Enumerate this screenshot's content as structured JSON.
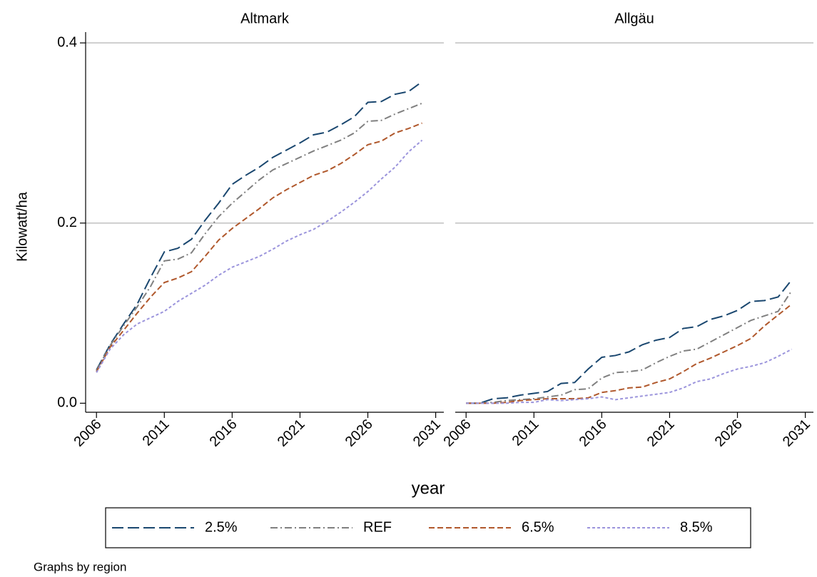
{
  "chart_data": [
    {
      "type": "line",
      "title": "Altmark",
      "y_label": "Kilowatt/ha",
      "x_label": "year",
      "note": "Graphs by region",
      "x": [
        2006,
        2007,
        2008,
        2009,
        2010,
        2011,
        2012,
        2013,
        2014,
        2015,
        2016,
        2017,
        2018,
        2019,
        2020,
        2021,
        2022,
        2023,
        2024,
        2025,
        2026,
        2027,
        2028,
        2029,
        2030
      ],
      "xlim": [
        2005.2,
        2031.6
      ],
      "xticks": [
        2006,
        2011,
        2016,
        2021,
        2026,
        2031
      ],
      "ylim": [
        -0.01,
        0.412
      ],
      "yticks": [
        {
          "value": 0,
          "label": "0.0"
        },
        0.2,
        0.4
      ],
      "grid": true,
      "series": [
        {
          "name": "2.5%",
          "color": "#1a476f",
          "dash": "16 6",
          "values": [
            0.037,
            0.065,
            0.088,
            0.11,
            0.14,
            0.168,
            0.172,
            0.182,
            0.203,
            0.222,
            0.243,
            0.253,
            0.262,
            0.273,
            0.281,
            0.289,
            0.298,
            0.301,
            0.309,
            0.318,
            0.334,
            0.335,
            0.343,
            0.346,
            0.357
          ]
        },
        {
          "name": "REF",
          "color": "#808080",
          "dash": "10 4 2 4",
          "values": [
            0.036,
            0.064,
            0.086,
            0.107,
            0.13,
            0.158,
            0.16,
            0.167,
            0.188,
            0.207,
            0.222,
            0.235,
            0.248,
            0.259,
            0.266,
            0.273,
            0.28,
            0.286,
            0.292,
            0.3,
            0.313,
            0.314,
            0.321,
            0.327,
            0.333
          ]
        },
        {
          "name": "6.5%",
          "color": "#b0582c",
          "dash": "8 4",
          "values": [
            0.035,
            0.062,
            0.081,
            0.1,
            0.118,
            0.134,
            0.139,
            0.146,
            0.163,
            0.181,
            0.194,
            0.205,
            0.216,
            0.228,
            0.237,
            0.245,
            0.253,
            0.258,
            0.266,
            0.276,
            0.287,
            0.291,
            0.3,
            0.305,
            0.311
          ]
        },
        {
          "name": "8.5%",
          "color": "#9b94dc",
          "dash": "4 3",
          "values": [
            0.034,
            0.06,
            0.076,
            0.088,
            0.095,
            0.102,
            0.113,
            0.122,
            0.131,
            0.142,
            0.151,
            0.157,
            0.163,
            0.171,
            0.18,
            0.187,
            0.193,
            0.202,
            0.212,
            0.223,
            0.235,
            0.249,
            0.262,
            0.279,
            0.292
          ]
        }
      ]
    },
    {
      "type": "line",
      "title": "Allgäu",
      "x": [
        2006,
        2007,
        2008,
        2009,
        2010,
        2011,
        2012,
        2013,
        2014,
        2015,
        2016,
        2017,
        2018,
        2019,
        2020,
        2021,
        2022,
        2023,
        2024,
        2025,
        2026,
        2027,
        2028,
        2029,
        2030
      ],
      "xlim": [
        2005.2,
        2031.6
      ],
      "xticks": [
        2006,
        2011,
        2016,
        2021,
        2026,
        2031
      ],
      "ylim": [
        -0.01,
        0.412
      ],
      "yticks": [
        0.2,
        0.4
      ],
      "grid": true,
      "series": [
        {
          "name": "2.5%",
          "color": "#1a476f",
          "dash": "16 6",
          "values": [
            0,
            0,
            0.005,
            0.006,
            0.009,
            0.011,
            0.013,
            0.022,
            0.023,
            0.038,
            0.051,
            0.053,
            0.057,
            0.065,
            0.07,
            0.073,
            0.083,
            0.085,
            0.093,
            0.097,
            0.103,
            0.113,
            0.114,
            0.118,
            0.137
          ]
        },
        {
          "name": "REF",
          "color": "#808080",
          "dash": "10 4 2 4",
          "values": [
            0,
            0,
            0.001,
            0.003,
            0.004,
            0.005,
            0.007,
            0.009,
            0.015,
            0.016,
            0.028,
            0.034,
            0.035,
            0.037,
            0.045,
            0.052,
            0.058,
            0.06,
            0.068,
            0.076,
            0.084,
            0.092,
            0.097,
            0.102,
            0.125
          ]
        },
        {
          "name": "6.5%",
          "color": "#b0582c",
          "dash": "8 4",
          "values": [
            0,
            0,
            0,
            0.001,
            0.003,
            0.004,
            0.005,
            0.005,
            0.005,
            0.006,
            0.012,
            0.014,
            0.017,
            0.018,
            0.023,
            0.027,
            0.035,
            0.044,
            0.05,
            0.057,
            0.064,
            0.072,
            0.086,
            0.098,
            0.11
          ]
        },
        {
          "name": "8.5%",
          "color": "#9b94dc",
          "dash": "4 3",
          "values": [
            0,
            0,
            0,
            0,
            0.001,
            0.001,
            0.004,
            0.003,
            0.004,
            0.005,
            0.007,
            0.004,
            0.006,
            0.008,
            0.01,
            0.012,
            0.017,
            0.024,
            0.027,
            0.033,
            0.038,
            0.041,
            0.045,
            0.052,
            0.06
          ]
        }
      ]
    }
  ]
}
